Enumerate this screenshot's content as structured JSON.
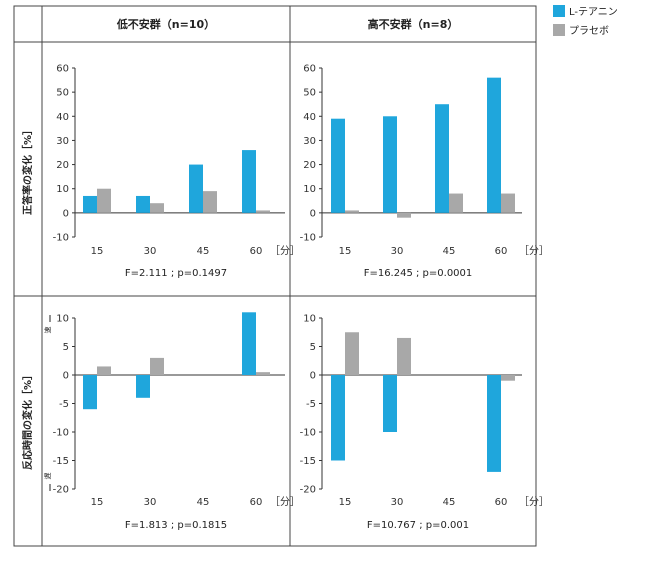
{
  "colors": {
    "theanine": "#1fa6dc",
    "placebo": "#a8a8a8",
    "axis": "#333333",
    "border": "#444444"
  },
  "legend": [
    {
      "label": "L-テアニン",
      "color": "#1fa6dc"
    },
    {
      "label": "プラセボ",
      "color": "#a8a8a8"
    }
  ],
  "columns": [
    "低不安群（n=10）",
    "高不安群（n=8）"
  ],
  "row_labels": [
    "正答率の変化［%］",
    "反応時間の変化［%］"
  ],
  "fast_label": "速",
  "slow_label": "遅",
  "unit_label": "［分］",
  "chart_data": [
    {
      "type": "bar",
      "panel": "low-accuracy",
      "title": "低不安群（n=10）",
      "ylabel": "正答率の変化［%］",
      "xlabel": "［分］",
      "categories": [
        "15",
        "30",
        "45",
        "60"
      ],
      "ylim": [
        -10,
        60
      ],
      "yticks": [
        60,
        50,
        40,
        30,
        20,
        10,
        0,
        -10
      ],
      "series": [
        {
          "name": "L-テアニン",
          "values": [
            7,
            7,
            20,
            26
          ]
        },
        {
          "name": "プラセボ",
          "values": [
            10,
            4,
            9,
            1
          ]
        }
      ],
      "stat": "F=2.111 ; p=0.1497"
    },
    {
      "type": "bar",
      "panel": "high-accuracy",
      "title": "高不安群（n=8）",
      "ylabel": "正答率の変化［%］",
      "xlabel": "［分］",
      "categories": [
        "15",
        "30",
        "45",
        "60"
      ],
      "ylim": [
        -10,
        60
      ],
      "yticks": [
        60,
        50,
        40,
        30,
        20,
        10,
        0,
        -10
      ],
      "series": [
        {
          "name": "L-テアニン",
          "values": [
            39,
            40,
            45,
            56
          ]
        },
        {
          "name": "プラセボ",
          "values": [
            1,
            -2,
            8,
            8
          ]
        }
      ],
      "stat": "F=16.245 ; p=0.0001"
    },
    {
      "type": "bar",
      "panel": "low-reaction",
      "title": "低不安群（n=10）",
      "ylabel": "反応時間の変化［%］",
      "xlabel": "［分］",
      "categories": [
        "15",
        "30",
        "45",
        "60"
      ],
      "ylim": [
        -20,
        10
      ],
      "yticks": [
        10,
        5,
        0,
        -5,
        -10,
        -15,
        -20
      ],
      "series": [
        {
          "name": "L-テアニン",
          "values": [
            -6,
            -4,
            0,
            11
          ]
        },
        {
          "name": "プラセボ",
          "values": [
            1.5,
            3,
            0,
            0.5
          ]
        }
      ],
      "stat": "F=1.813 ; p=0.1815"
    },
    {
      "type": "bar",
      "panel": "high-reaction",
      "title": "高不安群（n=8）",
      "ylabel": "反応時間の変化［%］",
      "xlabel": "［分］",
      "categories": [
        "15",
        "30",
        "45",
        "60"
      ],
      "ylim": [
        -20,
        10
      ],
      "yticks": [
        10,
        5,
        0,
        -5,
        -10,
        -15,
        -20
      ],
      "series": [
        {
          "name": "L-テアニン",
          "values": [
            -15,
            -10,
            0,
            -17
          ]
        },
        {
          "name": "プラセボ",
          "values": [
            7.5,
            6.5,
            0,
            -1
          ]
        }
      ],
      "stat": "F=10.767 ; p=0.001"
    }
  ]
}
